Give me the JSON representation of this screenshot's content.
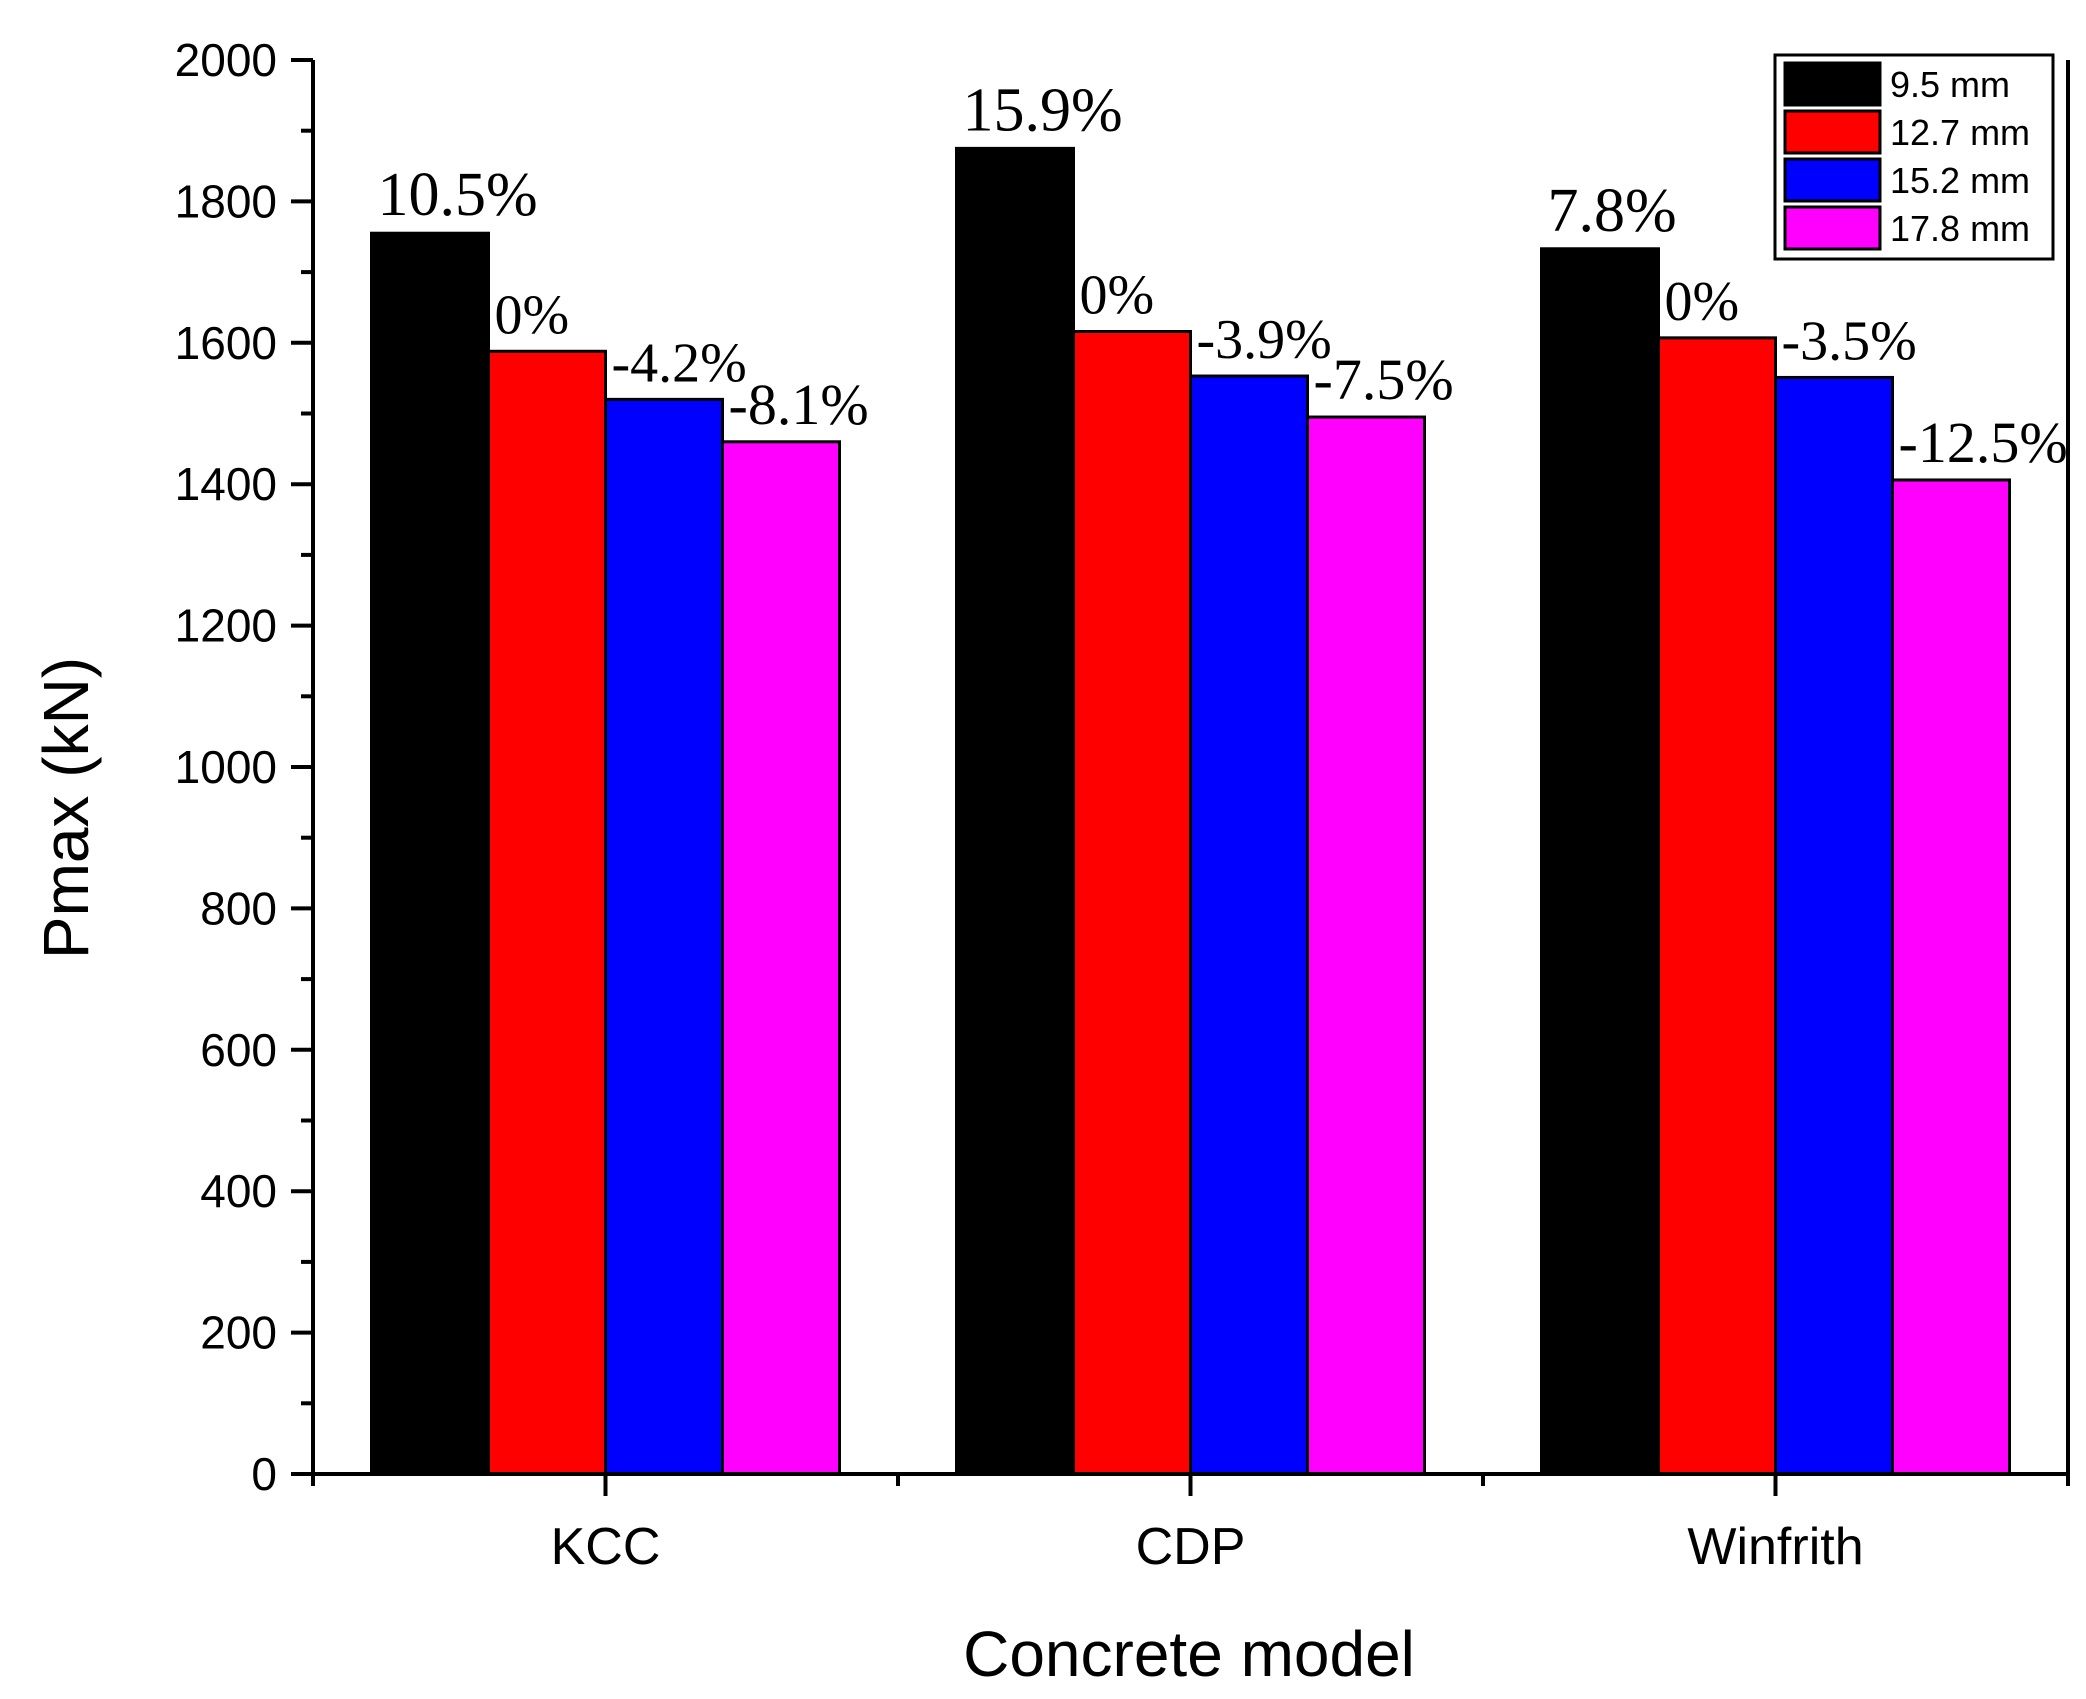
{
  "chart_data": {
    "type": "bar",
    "title": "",
    "xlabel": "Concrete model",
    "ylabel": "Pmax (kN)",
    "ylim": [
      0,
      2000
    ],
    "y_ticks": [
      0,
      200,
      400,
      600,
      800,
      1000,
      1200,
      1400,
      1600,
      1800,
      2000
    ],
    "y_tick_labels": [
      "0",
      "200",
      "400",
      "600",
      "800",
      "1000",
      "1200",
      "1400",
      "1600",
      "1800",
      "2000"
    ],
    "y_minor_step": 100,
    "categories": [
      "KCC",
      "CDP",
      "Winfrith"
    ],
    "grid": false,
    "legend_position": "top-right",
    "series": [
      {
        "name": "9.5 mm",
        "color": "#000000",
        "values": [
          1755,
          1875,
          1733
        ],
        "labels": [
          "10.5%",
          "15.9%",
          "7.8%"
        ]
      },
      {
        "name": "12.7 mm",
        "color": "#ff0000",
        "values": [
          1588,
          1616,
          1607
        ],
        "labels": [
          "0%",
          "0%",
          "0%"
        ]
      },
      {
        "name": "15.2 mm",
        "color": "#0000ff",
        "values": [
          1520,
          1553,
          1551
        ],
        "labels": [
          "-4.2%",
          "-3.9%",
          "-3.5%"
        ]
      },
      {
        "name": "17.8 mm",
        "color": "#ff00ff",
        "values": [
          1460,
          1495,
          1406
        ],
        "labels": [
          "-8.1%",
          "-7.5%",
          "-12.5%"
        ]
      }
    ]
  }
}
